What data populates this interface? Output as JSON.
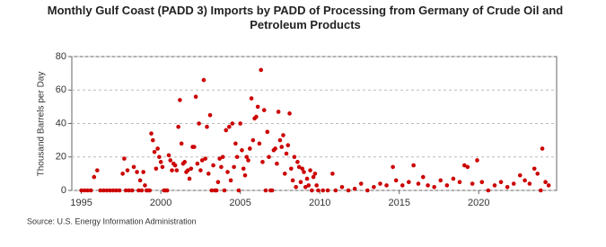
{
  "chart_data": {
    "type": "scatter",
    "title": "Monthly Gulf Coast (PADD 3) Imports by PADD of Processing from Germany of Crude Oil and Petroleum Products",
    "y_label": "Thousand Barrels per Day",
    "source": "Source: U.S. Energy Information Administration",
    "color": "#cc0000",
    "xlim": [
      1994.4,
      2024.9
    ],
    "xticks": [
      1995,
      2000,
      2005,
      2010,
      2015,
      2020
    ],
    "ylim": [
      0,
      80
    ],
    "yticks": [
      0,
      20,
      40,
      60,
      80
    ],
    "grid": true,
    "x": [
      1995.0,
      1995.2,
      1995.4,
      1995.6,
      1995.8,
      1996.0,
      1996.2,
      1996.4,
      1996.6,
      1996.8,
      1997.0,
      1997.2,
      1997.4,
      1997.6,
      1997.7,
      1997.8,
      1997.9,
      1998.0,
      1998.2,
      1998.3,
      1998.5,
      1998.6,
      1998.7,
      1998.8,
      1998.9,
      1999.0,
      1999.1,
      1999.2,
      1999.3,
      1999.4,
      1999.5,
      1999.6,
      1999.7,
      1999.8,
      1999.9,
      2000.0,
      2000.1,
      2000.2,
      2000.3,
      2000.4,
      2000.5,
      2000.6,
      2000.7,
      2000.8,
      2000.9,
      2001.0,
      2001.1,
      2001.2,
      2001.3,
      2001.4,
      2001.5,
      2001.6,
      2001.7,
      2001.8,
      2001.9,
      2002.0,
      2002.1,
      2002.2,
      2002.3,
      2002.4,
      2002.5,
      2002.6,
      2002.7,
      2002.8,
      2002.9,
      2003.0,
      2003.1,
      2003.2,
      2003.3,
      2003.4,
      2003.5,
      2003.6,
      2003.7,
      2003.8,
      2003.9,
      2004.0,
      2004.1,
      2004.2,
      2004.3,
      2004.4,
      2004.5,
      2004.6,
      2004.7,
      2004.8,
      2004.9,
      2005.0,
      2005.1,
      2005.2,
      2005.3,
      2005.4,
      2005.5,
      2005.6,
      2005.7,
      2005.8,
      2005.9,
      2006.0,
      2006.1,
      2006.2,
      2006.3,
      2006.4,
      2006.5,
      2006.6,
      2006.7,
      2006.8,
      2006.9,
      2007.0,
      2007.1,
      2007.2,
      2007.3,
      2007.4,
      2007.5,
      2007.6,
      2007.7,
      2007.8,
      2007.9,
      2008.0,
      2008.1,
      2008.2,
      2008.3,
      2008.4,
      2008.5,
      2008.6,
      2008.7,
      2008.8,
      2008.9,
      2009.0,
      2009.1,
      2009.2,
      2009.3,
      2009.4,
      2009.5,
      2009.6,
      2009.7,
      2009.8,
      2009.9,
      2010.2,
      2010.5,
      2010.8,
      2011.0,
      2011.4,
      2011.8,
      2012.2,
      2012.6,
      2013.0,
      2013.4,
      2013.8,
      2014.2,
      2014.6,
      2014.8,
      2015.2,
      2015.6,
      2015.9,
      2016.2,
      2016.5,
      2016.8,
      2017.2,
      2017.6,
      2018.0,
      2018.4,
      2018.8,
      2019.1,
      2019.3,
      2019.6,
      2019.9,
      2020.2,
      2020.6,
      2021.0,
      2021.4,
      2021.8,
      2022.2,
      2022.6,
      2022.9,
      2023.2,
      2023.5,
      2023.7,
      2023.9,
      2024.0,
      2024.2,
      2024.4
    ],
    "values": [
      0,
      0,
      0,
      0,
      8,
      12,
      0,
      0,
      0,
      0,
      0,
      0,
      0,
      10,
      19,
      0,
      12,
      0,
      0,
      14,
      11,
      0,
      6,
      0,
      11,
      3,
      0,
      0,
      0,
      34,
      30,
      23,
      13,
      25,
      20,
      17,
      14,
      0,
      0,
      0,
      21,
      18,
      12,
      16,
      15,
      12,
      38,
      54,
      28,
      16,
      17,
      11,
      12,
      7,
      13,
      26,
      26,
      56,
      16,
      40,
      12,
      18,
      66,
      19,
      38,
      10,
      45,
      0,
      15,
      0,
      0,
      5,
      19,
      14,
      20,
      0,
      36,
      11,
      38,
      6,
      40,
      14,
      28,
      20,
      0,
      40,
      24,
      13,
      9,
      20,
      18,
      25,
      55,
      30,
      43,
      44,
      50,
      28,
      72,
      17,
      48,
      0,
      35,
      20,
      0,
      0,
      24,
      25,
      16,
      47,
      30,
      26,
      33,
      10,
      22,
      27,
      46,
      13,
      6,
      20,
      2,
      17,
      14,
      5,
      13,
      11,
      2,
      7,
      3,
      12,
      0,
      8,
      10,
      3,
      0,
      0,
      0,
      10,
      0,
      2,
      0,
      1,
      4,
      0,
      2,
      4,
      3,
      14,
      6,
      3,
      5,
      15,
      4,
      8,
      3,
      2,
      6,
      3,
      7,
      5,
      15,
      14,
      4,
      18,
      5,
      0,
      3,
      5,
      2,
      4,
      9,
      6,
      4,
      13,
      10,
      0,
      25,
      5,
      3
    ]
  }
}
